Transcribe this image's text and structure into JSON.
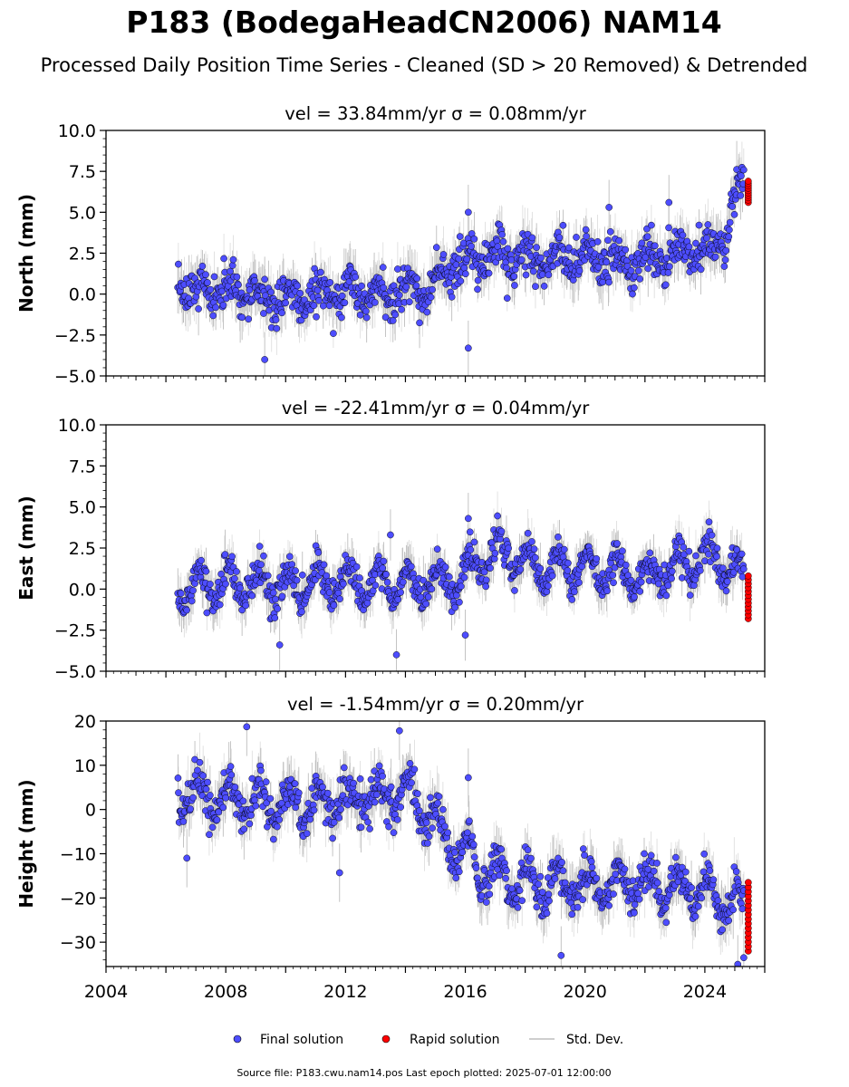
{
  "figure": {
    "title": "P183 (BodegaHeadCN2006) NAM14",
    "subtitle": "Processed Daily Position Time Series - Cleaned (SD > 20 Removed) & Detrended",
    "footer": "Source file: P183.cwu.nam14.pos  Last epoch plotted: 2025-07-01 12:00:00"
  },
  "colors": {
    "final_solution": "#4d4dff",
    "rapid_solution": "#ff0000",
    "std_dev": "#bdbdbd",
    "marker_edge": "#000000"
  },
  "legend": {
    "placement": "bottom-center",
    "items": [
      "Final solution",
      "Rapid solution",
      "Std. Dev."
    ]
  },
  "chart_data": [
    {
      "type": "scatter",
      "title": "vel = 33.84mm/yr   σ = 0.08mm/yr",
      "ylabel": "North (mm)",
      "xlim": [
        2004,
        2026
      ],
      "ylim": [
        -5,
        10
      ],
      "yticks": [
        "−5.0",
        "−2.5",
        "0.0",
        "2.5",
        "5.0",
        "7.5",
        "10.0"
      ],
      "yticks_values": [
        -5,
        -2.5,
        0,
        2.5,
        5,
        7.5,
        10
      ],
      "x_tick_labels_shown": false,
      "grid": false,
      "final_solution_trend": [
        [
          2006.4,
          0.2
        ],
        [
          2008.0,
          0.3
        ],
        [
          2010.0,
          -0.4
        ],
        [
          2012.0,
          0.2
        ],
        [
          2014.0,
          0.1
        ],
        [
          2014.8,
          0.3
        ],
        [
          2015.5,
          1.6
        ],
        [
          2016.5,
          2.2
        ],
        [
          2018.0,
          2.1
        ],
        [
          2020.0,
          2.3
        ],
        [
          2022.0,
          1.9
        ],
        [
          2023.0,
          2.6
        ],
        [
          2024.7,
          2.9
        ],
        [
          2024.9,
          5.6
        ],
        [
          2025.3,
          6.4
        ]
      ],
      "final_solution_noise": 1.1,
      "final_solution_annual_amplitude": 0.6,
      "std_dev_band": 1.4,
      "outliers": [
        [
          2009.3,
          -4.0
        ],
        [
          2016.1,
          -3.3
        ],
        [
          2016.1,
          5.0
        ],
        [
          2022.8,
          5.6
        ],
        [
          2020.8,
          5.3
        ]
      ],
      "rapid_solution": {
        "x": 2025.45,
        "y_range": [
          5.6,
          6.9
        ],
        "count": 10
      }
    },
    {
      "type": "scatter",
      "title": "vel = -22.41mm/yr   σ = 0.04mm/yr",
      "ylabel": "East (mm)",
      "xlim": [
        2004,
        2026
      ],
      "ylim": [
        -5,
        10
      ],
      "yticks": [
        "−5.0",
        "−2.5",
        "0.0",
        "2.5",
        "5.0",
        "7.5",
        "10.0"
      ],
      "yticks_values": [
        -5,
        -2.5,
        0,
        2.5,
        5,
        7.5,
        10
      ],
      "x_tick_labels_shown": false,
      "grid": false,
      "final_solution_trend": [
        [
          2006.4,
          0.0
        ],
        [
          2008.0,
          0.3
        ],
        [
          2010.0,
          0.2
        ],
        [
          2012.0,
          0.4
        ],
        [
          2014.0,
          0.3
        ],
        [
          2015.8,
          0.5
        ],
        [
          2016.3,
          1.5
        ],
        [
          2017.2,
          2.3
        ],
        [
          2018.5,
          1.3
        ],
        [
          2020.0,
          1.3
        ],
        [
          2022.0,
          0.8
        ],
        [
          2023.5,
          1.6
        ],
        [
          2024.5,
          2.0
        ],
        [
          2025.3,
          0.6
        ]
      ],
      "final_solution_noise": 0.8,
      "final_solution_annual_amplitude": 1.0,
      "std_dev_band": 1.3,
      "outliers": [
        [
          2013.7,
          -4.0
        ],
        [
          2009.8,
          -3.4
        ],
        [
          2016.1,
          4.3
        ],
        [
          2016.0,
          -2.8
        ],
        [
          2013.5,
          3.3
        ]
      ],
      "rapid_solution": {
        "x": 2025.45,
        "y_range": [
          -1.8,
          0.8
        ],
        "count": 12
      }
    },
    {
      "type": "scatter",
      "title": "vel = -1.54mm/yr   σ = 0.20mm/yr",
      "ylabel": "Height (mm)",
      "xlim": [
        2004,
        2026
      ],
      "ylim": [
        -35.5,
        20
      ],
      "yticks": [
        "−30",
        "−20",
        "−10",
        "0",
        "10",
        "20"
      ],
      "yticks_values": [
        -30,
        -20,
        -10,
        0,
        10,
        20
      ],
      "xticks": [
        "2004",
        "2008",
        "2012",
        "2016",
        "2020",
        "2024"
      ],
      "xticks_values": [
        2004,
        2008,
        2012,
        2016,
        2020,
        2024
      ],
      "grid": false,
      "final_solution_trend": [
        [
          2006.4,
          4.0
        ],
        [
          2008.0,
          2.0
        ],
        [
          2010.0,
          1.0
        ],
        [
          2012.0,
          2.0
        ],
        [
          2014.0,
          4.0
        ],
        [
          2014.8,
          -1.0
        ],
        [
          2015.5,
          -8.0
        ],
        [
          2016.5,
          -13.0
        ],
        [
          2018.0,
          -17.0
        ],
        [
          2020.0,
          -17.0
        ],
        [
          2022.0,
          -17.0
        ],
        [
          2024.0,
          -18.0
        ],
        [
          2025.3,
          -22.0
        ]
      ],
      "final_solution_noise": 3.5,
      "final_solution_annual_amplitude": 4.0,
      "std_dev_band": 5.5,
      "outliers": [
        [
          2006.7,
          -11.0
        ],
        [
          2008.7,
          18.7
        ],
        [
          2013.8,
          17.8
        ],
        [
          2016.1,
          7.2
        ],
        [
          2019.2,
          -33.0
        ],
        [
          2011.8,
          -14.3
        ],
        [
          2025.1,
          -35.0
        ],
        [
          2025.3,
          -33.5
        ]
      ],
      "rapid_solution": {
        "x": 2025.45,
        "y_range": [
          -32.0,
          -16.5
        ],
        "count": 16
      }
    }
  ]
}
